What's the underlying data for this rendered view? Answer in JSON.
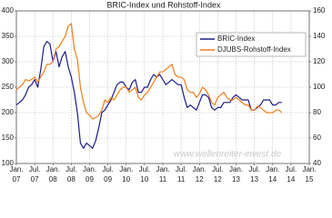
{
  "chart_data": {
    "type": "line",
    "title": "BRIC-Index und Rohstoff-Index",
    "watermark": "www.wellenreiter-invest.de",
    "x": [
      "2007-01",
      "2007-02",
      "2007-03",
      "2007-04",
      "2007-05",
      "2007-06",
      "2007-07",
      "2007-08",
      "2007-09",
      "2007-10",
      "2007-11",
      "2007-12",
      "2008-01",
      "2008-02",
      "2008-03",
      "2008-04",
      "2008-05",
      "2008-06",
      "2008-07",
      "2008-08",
      "2008-09",
      "2008-10",
      "2008-11",
      "2008-12",
      "2009-01",
      "2009-02",
      "2009-03",
      "2009-04",
      "2009-05",
      "2009-06",
      "2009-07",
      "2009-08",
      "2009-09",
      "2009-10",
      "2009-11",
      "2009-12",
      "2010-01",
      "2010-02",
      "2010-03",
      "2010-04",
      "2010-05",
      "2010-06",
      "2010-07",
      "2010-08",
      "2010-09",
      "2010-10",
      "2010-11",
      "2010-12",
      "2011-01",
      "2011-02",
      "2011-03",
      "2011-04",
      "2011-05",
      "2011-06",
      "2011-07",
      "2011-08",
      "2011-09",
      "2011-10",
      "2011-11",
      "2011-12",
      "2012-01",
      "2012-02",
      "2012-03",
      "2012-04",
      "2012-05",
      "2012-06",
      "2012-07",
      "2012-08",
      "2012-09",
      "2012-10",
      "2012-11",
      "2012-12",
      "2013-01",
      "2013-02",
      "2013-03",
      "2013-04",
      "2013-05",
      "2013-06",
      "2013-07",
      "2013-08",
      "2013-09",
      "2013-10",
      "2013-11",
      "2013-12",
      "2014-01",
      "2014-02",
      "2014-03",
      "2014-04"
    ],
    "series": [
      {
        "name": "BRIC-Index",
        "color": "#1c1c8a",
        "values": [
          215,
          220,
          225,
          235,
          250,
          255,
          265,
          250,
          285,
          330,
          340,
          335,
          300,
          320,
          290,
          310,
          320,
          290,
          270,
          240,
          200,
          140,
          130,
          140,
          135,
          130,
          145,
          170,
          200,
          205,
          215,
          225,
          240,
          255,
          260,
          260,
          250,
          245,
          260,
          265,
          240,
          240,
          250,
          250,
          265,
          275,
          270,
          275,
          265,
          255,
          260,
          265,
          260,
          255,
          255,
          230,
          210,
          215,
          210,
          205,
          220,
          235,
          235,
          230,
          210,
          205,
          210,
          210,
          220,
          220,
          220,
          230,
          235,
          230,
          225,
          225,
          225,
          205,
          205,
          210,
          215,
          225,
          225,
          225,
          215,
          215,
          220,
          220
        ]
      },
      {
        "name": "DJUBS-Rohstoff-Index",
        "color": "#f07c1a",
        "axis": "y2",
        "values": [
          98,
          100,
          102,
          106,
          105,
          106,
          108,
          104,
          108,
          112,
          118,
          118,
          120,
          130,
          132,
          136,
          140,
          148,
          150,
          130,
          122,
          100,
          88,
          80,
          78,
          75,
          76,
          78,
          82,
          90,
          88,
          92,
          90,
          94,
          98,
          100,
          100,
          96,
          98,
          100,
          92,
          90,
          94,
          96,
          100,
          104,
          108,
          112,
          112,
          114,
          116,
          118,
          110,
          108,
          108,
          106,
          98,
          96,
          96,
          92,
          95,
          100,
          98,
          94,
          88,
          86,
          92,
          94,
          96,
          92,
          90,
          90,
          92,
          90,
          88,
          86,
          86,
          82,
          82,
          85,
          84,
          82,
          80,
          80,
          80,
          82,
          82,
          80
        ]
      }
    ],
    "xlim": [
      "2007-01",
      "2015-01"
    ],
    "xticks": [
      {
        "value": "2007-01",
        "label": [
          "Jan.",
          "07"
        ]
      },
      {
        "value": "2007-07",
        "label": [
          "Jul.",
          "07"
        ]
      },
      {
        "value": "2008-01",
        "label": [
          "Jan.",
          "08"
        ]
      },
      {
        "value": "2008-07",
        "label": [
          "Jul.",
          "08"
        ]
      },
      {
        "value": "2009-01",
        "label": [
          "Jan.",
          "09"
        ]
      },
      {
        "value": "2009-07",
        "label": [
          "Jul.",
          "09"
        ]
      },
      {
        "value": "2010-01",
        "label": [
          "Jan.",
          "10"
        ]
      },
      {
        "value": "2010-07",
        "label": [
          "Jul.",
          "10"
        ]
      },
      {
        "value": "2011-01",
        "label": [
          "Jan.",
          "11"
        ]
      },
      {
        "value": "2011-07",
        "label": [
          "Jul.",
          "11"
        ]
      },
      {
        "value": "2012-01",
        "label": [
          "Jan.",
          "12"
        ]
      },
      {
        "value": "2012-07",
        "label": [
          "Jul.",
          "12"
        ]
      },
      {
        "value": "2013-01",
        "label": [
          "Jan.",
          "13"
        ]
      },
      {
        "value": "2013-07",
        "label": [
          "Jul.",
          "13"
        ]
      },
      {
        "value": "2014-01",
        "label": [
          "Jan.",
          "14"
        ]
      },
      {
        "value": "2014-07",
        "label": [
          "Jul.",
          "14"
        ]
      },
      {
        "value": "2015-01",
        "label": [
          "Jan.",
          "15"
        ]
      }
    ],
    "ylim": [
      100,
      400
    ],
    "yticks": [
      100,
      150,
      200,
      250,
      300,
      350,
      400
    ],
    "y2lim": [
      40,
      160
    ],
    "y2ticks": [
      40,
      60,
      80,
      100,
      120,
      140,
      160
    ],
    "grid": true,
    "legend": "upper-right"
  }
}
